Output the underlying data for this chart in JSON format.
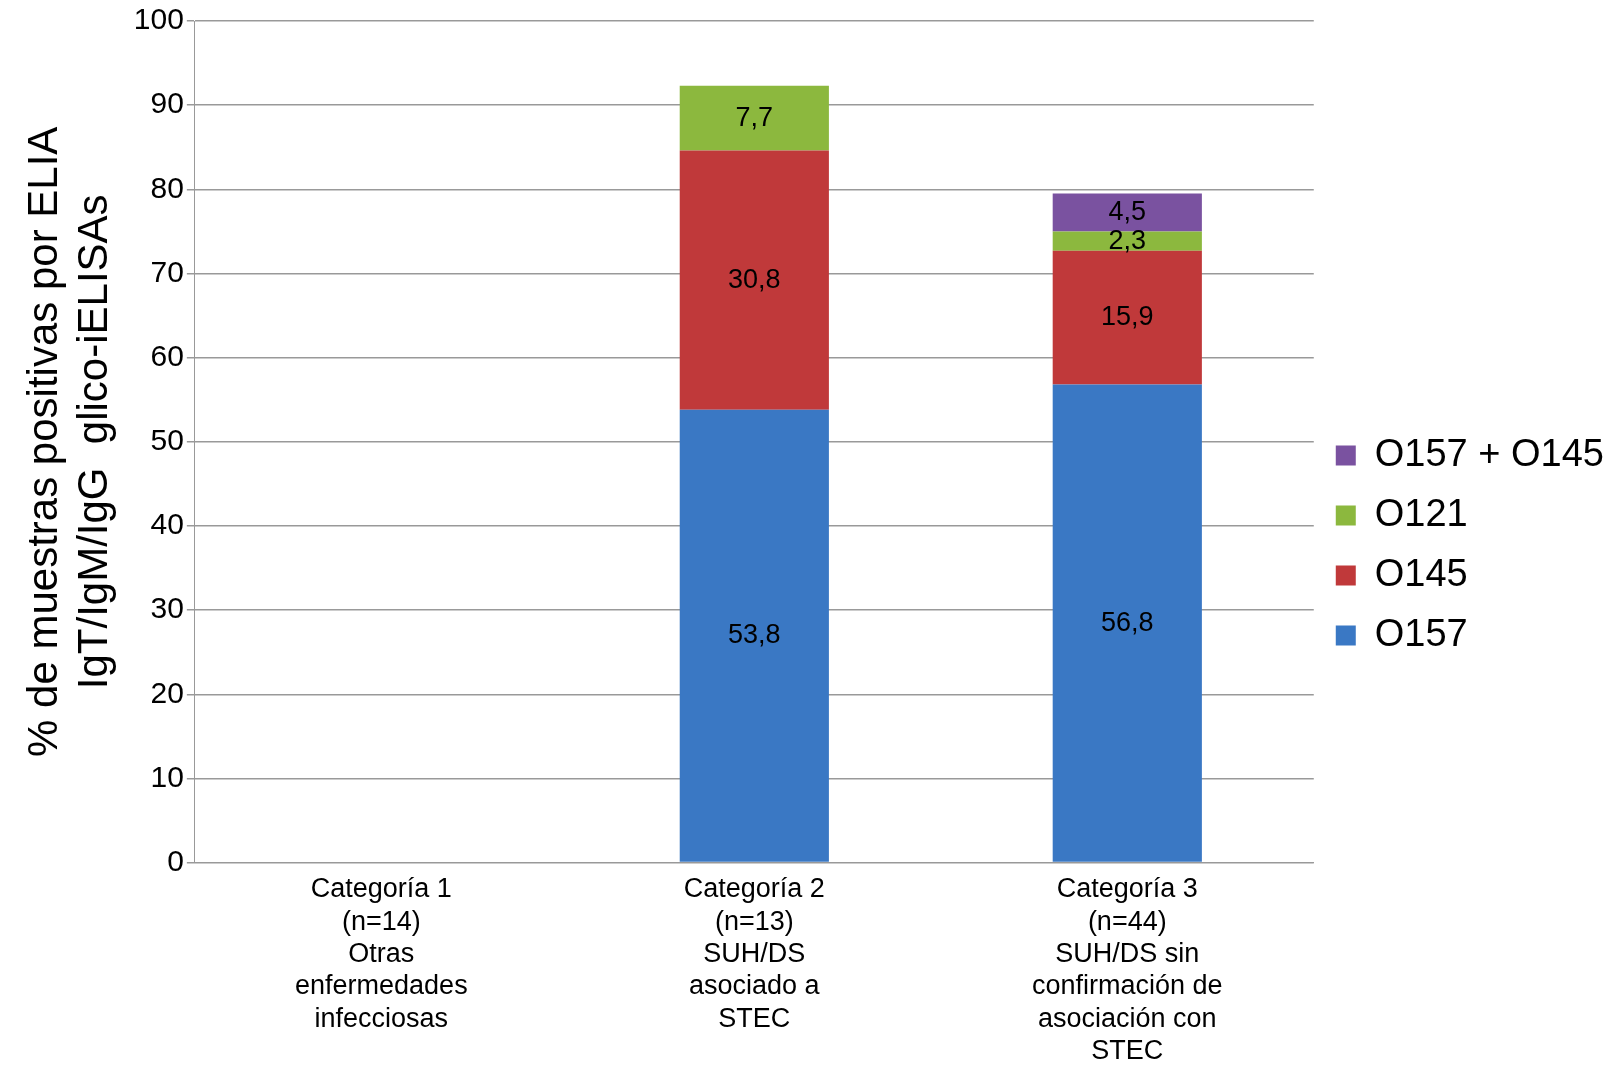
{
  "chart_data": {
    "type": "bar",
    "stacked": true,
    "ylabel": "% de muestras positivas por ELIA\nIgT/IgM/IgG  glico-iELISAs",
    "categories": [
      "Categoría 1\n(n=14)\nOtras\nenfermedades\ninfecciosas",
      "Categoría 2\n(n=13)\nSUH/DS\nasociado a\nSTEC",
      "Categoría 3\n(n=44)\nSUH/DS sin\nconfirmación de\nasociación con\nSTEC"
    ],
    "series": [
      {
        "name": "O157",
        "color": "#3a78c4",
        "values": [
          null,
          53.8,
          56.8
        ],
        "value_labels": [
          null,
          "53,8",
          "56,8"
        ]
      },
      {
        "name": "O145",
        "color": "#c0393a",
        "values": [
          null,
          30.8,
          15.9
        ],
        "value_labels": [
          null,
          "30,8",
          "15,9"
        ]
      },
      {
        "name": "O121",
        "color": "#8cb83e",
        "values": [
          null,
          7.7,
          2.3
        ],
        "value_labels": [
          null,
          "7,7",
          "2,3"
        ]
      },
      {
        "name": "O157 + O145",
        "color": "#7a52a0",
        "values": [
          null,
          null,
          4.5
        ],
        "value_labels": [
          null,
          null,
          "4,5"
        ]
      }
    ],
    "ylim": [
      0,
      100
    ],
    "yticks": [
      0,
      10,
      20,
      30,
      40,
      50,
      60,
      70,
      80,
      90,
      100
    ],
    "grid": "y",
    "legend": "right"
  }
}
